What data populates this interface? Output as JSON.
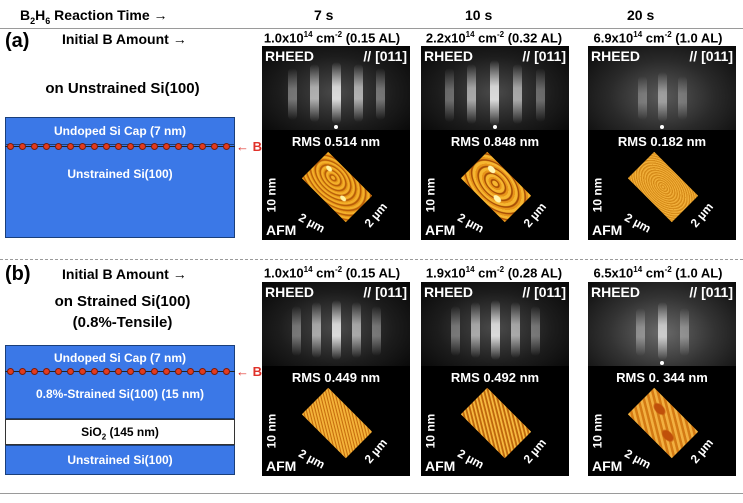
{
  "header": {
    "reaction_label_pre": "B",
    "reaction_sub1": "2",
    "reaction_mid": "H",
    "reaction_sub2": "6",
    "reaction_label_post": " Reaction Time →",
    "times": [
      "7 s",
      "10 s",
      "20 s"
    ]
  },
  "rows": [
    {
      "tag": "(a)",
      "amount_label": "Initial B Amount →",
      "title_lines": [
        "on Unstrained Si(100)"
      ],
      "amounts": [
        {
          "base": "1.0x10",
          "exp": "14",
          "unit": " cm",
          "uexp": "-2",
          "al": " (0.15 AL)"
        },
        {
          "base": "2.2x10",
          "exp": "14",
          "unit": " cm",
          "uexp": "-2",
          "al": " (0.32 AL)"
        },
        {
          "base": "6.9x10",
          "exp": "14",
          "unit": " cm",
          "uexp": "-2",
          "al": " (1.0 AL)"
        }
      ],
      "rms": [
        "RMS 0.514 nm",
        "RMS 0.848 nm",
        "RMS 0.182 nm"
      ],
      "layers": [
        "Undoped Si Cap (7 nm)",
        "Unstrained Si(100)"
      ],
      "b_label": "← B"
    },
    {
      "tag": "(b)",
      "amount_label": "Initial B Amount →",
      "title_lines": [
        "on Strained Si(100)",
        "(0.8%-Tensile)"
      ],
      "amounts": [
        {
          "base": "1.0x10",
          "exp": "14",
          "unit": " cm",
          "uexp": "-2",
          "al": " (0.15 AL)"
        },
        {
          "base": "1.9x10",
          "exp": "14",
          "unit": " cm",
          "uexp": "-2",
          "al": " (0.28 AL)"
        },
        {
          "base": "6.5x10",
          "exp": "14",
          "unit": " cm",
          "uexp": "-2",
          "al": " (1.0 AL)"
        }
      ],
      "rms": [
        "RMS 0.449 nm",
        "RMS 0.492 nm",
        "RMS 0. 344 nm"
      ],
      "layers": [
        "Undoped Si Cap (7 nm)",
        "0.8%-Strained Si(100) (15 nm)",
        "SiO",
        "2",
        " (145 nm)",
        "Unstrained Si(100)"
      ],
      "b_label": "← B"
    }
  ],
  "panel_labels": {
    "rheed": "RHEED",
    "direction": "// [011]",
    "afm": "AFM",
    "z_axis": "10 nm",
    "x_axis": "2 µm",
    "y_axis": "2 µm"
  },
  "colors": {
    "layer_blue": "#3b78e7",
    "boron_red": "#e23b1f",
    "afm_orange": "#e8a01c"
  }
}
